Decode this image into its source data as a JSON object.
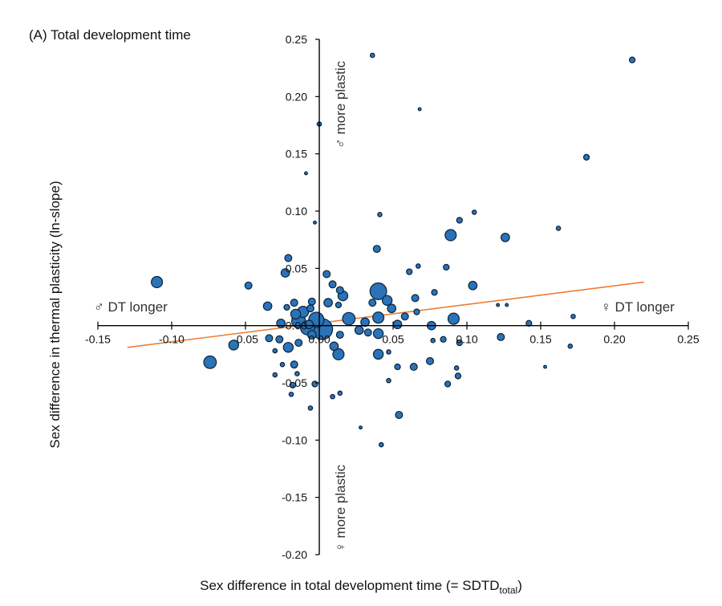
{
  "panel_title": "(A) Total development time",
  "xlabel": {
    "text": "Sex difference in total development time (= SDTD",
    "sub": "total",
    "suffix": ")"
  },
  "ylabel": "Sex difference in thermal plasticity (ln-slope)",
  "annotations": {
    "male_dt_longer": "♂ DT longer",
    "female_dt_longer": "♀ DT longer",
    "male_more_plastic": "♂ more plastic",
    "female_more_plastic": "♀ more plastic"
  },
  "colors": {
    "point_fill": "#2a73b8",
    "point_stroke": "#0c2238",
    "trend": "#ed7d31",
    "axis": "#000000"
  },
  "chart_data": {
    "type": "scatter",
    "title": "(A) Total development time",
    "xlabel": "Sex difference in total development time (= SDTD_total)",
    "ylabel": "Sex difference in thermal plasticity (ln-slope)",
    "xlim": [
      -0.15,
      0.25
    ],
    "ylim": [
      -0.2,
      0.25
    ],
    "x_ticks": [
      -0.15,
      -0.1,
      -0.05,
      0.0,
      0.05,
      0.1,
      0.15,
      0.2,
      0.25
    ],
    "x_tick_labels": [
      "-0.15",
      "-0.10",
      "-0.05",
      "0.00",
      "0.05",
      "0.10",
      "0.15",
      "0.20",
      "0.25"
    ],
    "y_ticks": [
      -0.2,
      -0.15,
      -0.1,
      -0.05,
      0.0,
      0.05,
      0.1,
      0.15,
      0.2,
      0.25
    ],
    "y_tick_labels": [
      "-0.20",
      "-0.15",
      "-0.10",
      "-0.05",
      "0.00",
      "0.05",
      "0.10",
      "0.15",
      "0.20",
      "0.25"
    ],
    "grid": false,
    "points": [
      {
        "x": 0.036,
        "y": 0.236,
        "size": 2
      },
      {
        "x": 0.212,
        "y": 0.232,
        "size": 3
      },
      {
        "x": 0.068,
        "y": 0.189,
        "size": 1
      },
      {
        "x": 0.0,
        "y": 0.176,
        "size": 2
      },
      {
        "x": 0.181,
        "y": 0.147,
        "size": 3
      },
      {
        "x": -0.009,
        "y": 0.133,
        "size": 1
      },
      {
        "x": 0.105,
        "y": 0.099,
        "size": 2
      },
      {
        "x": 0.041,
        "y": 0.097,
        "size": 2
      },
      {
        "x": 0.095,
        "y": 0.092,
        "size": 3
      },
      {
        "x": -0.003,
        "y": 0.09,
        "size": 1
      },
      {
        "x": 0.162,
        "y": 0.085,
        "size": 2
      },
      {
        "x": 0.089,
        "y": 0.079,
        "size": 7
      },
      {
        "x": 0.126,
        "y": 0.077,
        "size": 5
      },
      {
        "x": 0.039,
        "y": 0.067,
        "size": 4
      },
      {
        "x": -0.021,
        "y": 0.059,
        "size": 4
      },
      {
        "x": 0.067,
        "y": 0.052,
        "size": 2
      },
      {
        "x": 0.086,
        "y": 0.051,
        "size": 3
      },
      {
        "x": 0.061,
        "y": 0.047,
        "size": 3
      },
      {
        "x": -0.023,
        "y": 0.046,
        "size": 5
      },
      {
        "x": 0.005,
        "y": 0.045,
        "size": 4
      },
      {
        "x": 0.009,
        "y": 0.036,
        "size": 4
      },
      {
        "x": -0.048,
        "y": 0.035,
        "size": 4
      },
      {
        "x": 0.104,
        "y": 0.035,
        "size": 5
      },
      {
        "x": 0.014,
        "y": 0.031,
        "size": 4
      },
      {
        "x": 0.04,
        "y": 0.03,
        "size": 11
      },
      {
        "x": 0.078,
        "y": 0.029,
        "size": 3
      },
      {
        "x": 0.016,
        "y": 0.026,
        "size": 6
      },
      {
        "x": 0.065,
        "y": 0.024,
        "size": 4
      },
      {
        "x": 0.046,
        "y": 0.022,
        "size": 6
      },
      {
        "x": 0.036,
        "y": 0.02,
        "size": 4
      },
      {
        "x": -0.017,
        "y": 0.02,
        "size": 4
      },
      {
        "x": 0.006,
        "y": 0.02,
        "size": 5
      },
      {
        "x": -0.005,
        "y": 0.021,
        "size": 4
      },
      {
        "x": 0.013,
        "y": 0.018,
        "size": 3
      },
      {
        "x": 0.127,
        "y": 0.018,
        "size": 1
      },
      {
        "x": -0.022,
        "y": 0.016,
        "size": 3
      },
      {
        "x": -0.006,
        "y": 0.015,
        "size": 4
      },
      {
        "x": -0.035,
        "y": 0.017,
        "size": 5
      },
      {
        "x": 0.049,
        "y": 0.015,
        "size": 5
      },
      {
        "x": 0.066,
        "y": 0.012,
        "size": 3
      },
      {
        "x": -0.011,
        "y": 0.012,
        "size": 7
      },
      {
        "x": -0.016,
        "y": 0.01,
        "size": 6
      },
      {
        "x": 0.058,
        "y": 0.008,
        "size": 4
      },
      {
        "x": 0.04,
        "y": 0.007,
        "size": 7
      },
      {
        "x": 0.02,
        "y": 0.006,
        "size": 8
      },
      {
        "x": 0.091,
        "y": 0.006,
        "size": 7
      },
      {
        "x": 0.172,
        "y": 0.008,
        "size": 2
      },
      {
        "x": -0.002,
        "y": 0.005,
        "size": 10
      },
      {
        "x": -0.014,
        "y": 0.004,
        "size": 9
      },
      {
        "x": 0.031,
        "y": 0.003,
        "size": 5
      },
      {
        "x": 0.142,
        "y": 0.002,
        "size": 3
      },
      {
        "x": -0.026,
        "y": 0.002,
        "size": 5
      },
      {
        "x": -0.007,
        "y": 0.001,
        "size": 5
      },
      {
        "x": 0.053,
        "y": 0.001,
        "size": 5
      },
      {
        "x": 0.076,
        "y": 0.0,
        "size": 5
      },
      {
        "x": -0.008,
        "y": -0.002,
        "size": 9
      },
      {
        "x": 0.002,
        "y": -0.003,
        "size": 14
      },
      {
        "x": 0.027,
        "y": -0.004,
        "size": 5
      },
      {
        "x": 0.033,
        "y": -0.006,
        "size": 4
      },
      {
        "x": 0.04,
        "y": -0.007,
        "size": 6
      },
      {
        "x": -0.005,
        "y": -0.008,
        "size": 5
      },
      {
        "x": 0.014,
        "y": -0.008,
        "size": 4
      },
      {
        "x": 0.084,
        "y": -0.012,
        "size": 3
      },
      {
        "x": 0.123,
        "y": -0.01,
        "size": 4
      },
      {
        "x": -0.034,
        "y": -0.011,
        "size": 4
      },
      {
        "x": -0.027,
        "y": -0.012,
        "size": 4
      },
      {
        "x": -0.014,
        "y": -0.015,
        "size": 4
      },
      {
        "x": 0.077,
        "y": -0.013,
        "size": 2
      },
      {
        "x": 0.095,
        "y": -0.015,
        "size": 3
      },
      {
        "x": -0.058,
        "y": -0.017,
        "size": 6
      },
      {
        "x": -0.021,
        "y": -0.019,
        "size": 6
      },
      {
        "x": 0.01,
        "y": -0.018,
        "size": 5
      },
      {
        "x": 0.17,
        "y": -0.018,
        "size": 2
      },
      {
        "x": -0.03,
        "y": -0.022,
        "size": 2
      },
      {
        "x": 0.047,
        "y": -0.023,
        "size": 2
      },
      {
        "x": 0.04,
        "y": -0.025,
        "size": 6
      },
      {
        "x": 0.013,
        "y": -0.025,
        "size": 7
      },
      {
        "x": -0.11,
        "y": 0.038,
        "size": 7
      },
      {
        "x": 0.121,
        "y": 0.018,
        "size": 1
      },
      {
        "x": -0.074,
        "y": -0.032,
        "size": 8
      },
      {
        "x": 0.075,
        "y": -0.031,
        "size": 4
      },
      {
        "x": -0.017,
        "y": -0.034,
        "size": 4
      },
      {
        "x": -0.025,
        "y": -0.034,
        "size": 2
      },
      {
        "x": 0.053,
        "y": -0.036,
        "size": 3
      },
      {
        "x": 0.064,
        "y": -0.036,
        "size": 4
      },
      {
        "x": 0.093,
        "y": -0.037,
        "size": 2
      },
      {
        "x": 0.153,
        "y": -0.036,
        "size": 1
      },
      {
        "x": -0.015,
        "y": -0.042,
        "size": 2
      },
      {
        "x": -0.03,
        "y": -0.043,
        "size": 2
      },
      {
        "x": 0.094,
        "y": -0.044,
        "size": 3
      },
      {
        "x": 0.047,
        "y": -0.048,
        "size": 2
      },
      {
        "x": 0.087,
        "y": -0.051,
        "size": 3
      },
      {
        "x": -0.018,
        "y": -0.052,
        "size": 3
      },
      {
        "x": -0.003,
        "y": -0.051,
        "size": 3
      },
      {
        "x": -0.019,
        "y": -0.06,
        "size": 2
      },
      {
        "x": 0.014,
        "y": -0.059,
        "size": 2
      },
      {
        "x": 0.009,
        "y": -0.062,
        "size": 2
      },
      {
        "x": -0.006,
        "y": -0.072,
        "size": 2
      },
      {
        "x": 0.054,
        "y": -0.078,
        "size": 4
      },
      {
        "x": 0.028,
        "y": -0.089,
        "size": 1
      },
      {
        "x": 0.042,
        "y": -0.104,
        "size": 2
      }
    ],
    "trend_line": {
      "x": [
        -0.13,
        0.22
      ],
      "y": [
        -0.019,
        0.038
      ]
    }
  }
}
